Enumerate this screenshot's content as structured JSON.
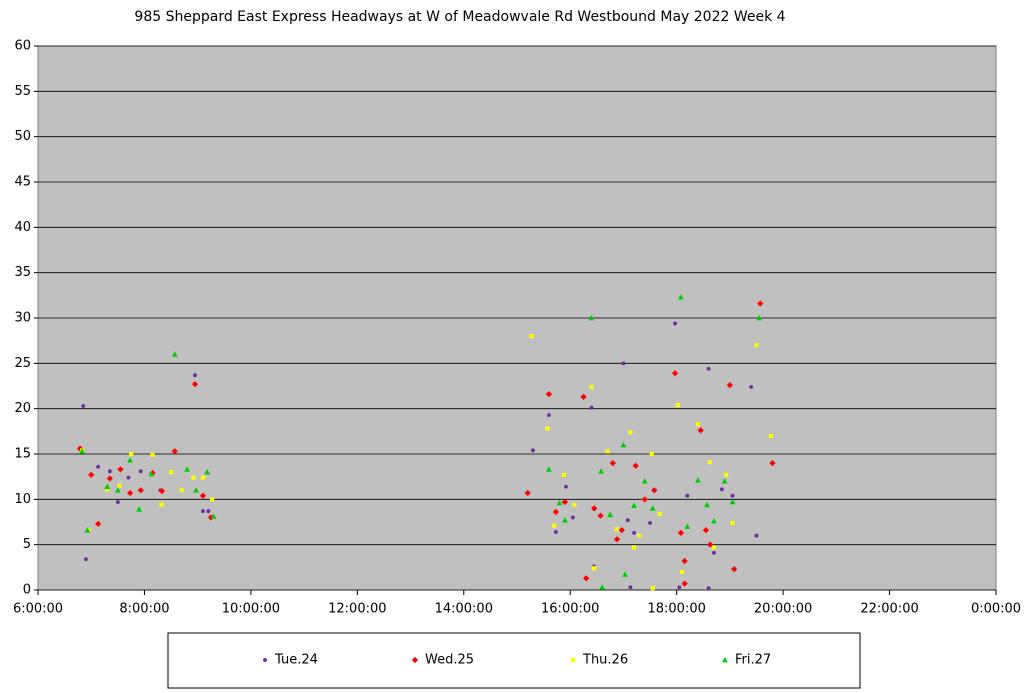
{
  "chart_data": {
    "type": "scatter",
    "title": "985 Sheppard East Express Headways at W of Meadowvale Rd Westbound May 2022  Week 4",
    "xlim": [
      6,
      24
    ],
    "xticks": [
      {
        "value": 6,
        "label": "6:00:00"
      },
      {
        "value": 8,
        "label": "8:00:00"
      },
      {
        "value": 10,
        "label": "10:00:00"
      },
      {
        "value": 12,
        "label": "12:00:00"
      },
      {
        "value": 14,
        "label": "14:00:00"
      },
      {
        "value": 16,
        "label": "16:00:00"
      },
      {
        "value": 18,
        "label": "18:00:00"
      },
      {
        "value": 20,
        "label": "20:00:00"
      },
      {
        "value": 22,
        "label": "22:00:00"
      },
      {
        "value": 24,
        "label": "0:00:00"
      }
    ],
    "ylim": [
      0,
      60
    ],
    "yticks": [
      0,
      5,
      10,
      15,
      20,
      25,
      30,
      35,
      40,
      45,
      50,
      55,
      60
    ],
    "grid": true,
    "legend": "bottom",
    "series": [
      {
        "name": "Tue.24",
        "color": "#7030a0",
        "marker": "circle",
        "x": [
          6.85,
          6.9,
          7.13,
          7.35,
          7.5,
          7.7,
          7.93,
          8.3,
          8.95,
          9.1,
          9.2,
          15.3,
          15.6,
          15.73,
          15.92,
          16.05,
          16.4,
          16.45,
          17.0,
          17.08,
          17.13,
          17.2,
          17.5,
          17.97,
          18.05,
          18.2,
          18.6,
          18.6,
          18.7,
          18.85,
          19.05,
          19.4,
          19.5
        ],
        "values": [
          20.3,
          3.4,
          13.6,
          13.1,
          9.7,
          12.4,
          13.1,
          11,
          23.7,
          8.7,
          8.7,
          15.4,
          19.3,
          6.4,
          11.4,
          8,
          20.1,
          2.6,
          25,
          7.7,
          0.3,
          6.3,
          7.4,
          29.4,
          0.3,
          10.4,
          24.4,
          0.2,
          4.1,
          11.1,
          10.4,
          22.4,
          6
        ]
      },
      {
        "name": "Wed.25",
        "color": "#ff0000",
        "marker": "diamond",
        "x": [
          6.79,
          7.0,
          7.13,
          7.35,
          7.55,
          7.73,
          7.93,
          8.15,
          8.33,
          8.57,
          8.95,
          9.1,
          9.25,
          15.2,
          15.6,
          15.73,
          15.9,
          16.25,
          16.3,
          16.45,
          16.57,
          16.8,
          16.88,
          16.97,
          17.23,
          17.4,
          17.58,
          17.97,
          18.08,
          18.15,
          18.15,
          18.45,
          18.55,
          18.63,
          19.0,
          19.08,
          19.57,
          19.8
        ],
        "values": [
          15.6,
          12.7,
          7.3,
          12.3,
          13.3,
          10.7,
          11,
          12.9,
          10.9,
          15.3,
          22.7,
          10.4,
          8,
          10.7,
          21.6,
          8.6,
          9.7,
          21.3,
          1.3,
          9,
          8.2,
          14,
          5.6,
          6.6,
          13.7,
          10,
          11,
          23.9,
          6.3,
          3.2,
          0.7,
          17.6,
          6.6,
          5,
          22.6,
          2.3,
          31.6,
          14
        ]
      },
      {
        "name": "Thu.26",
        "color": "#ffff00",
        "marker": "square",
        "x": [
          6.83,
          6.95,
          7.3,
          7.53,
          7.75,
          8.15,
          8.32,
          8.5,
          8.7,
          8.92,
          9.1,
          9.27,
          15.27,
          15.57,
          15.7,
          15.88,
          16.08,
          16.4,
          16.45,
          16.7,
          16.87,
          17.13,
          17.2,
          17.3,
          17.53,
          17.55,
          17.68,
          18.02,
          18.1,
          18.4,
          18.62,
          18.7,
          18.93,
          19.05,
          19.5,
          19.77
        ],
        "values": [
          15.4,
          6.6,
          11.1,
          11.5,
          15,
          14.9,
          9.4,
          13,
          11,
          12.4,
          12.4,
          10,
          28,
          17.8,
          7.1,
          12.7,
          9.4,
          22.4,
          2.4,
          15.3,
          6.7,
          17.4,
          4.7,
          6,
          15,
          0.2,
          8.4,
          20.4,
          2,
          18.3,
          14.1,
          4.7,
          12.7,
          7.4,
          27,
          17
        ]
      },
      {
        "name": "Fri.27",
        "color": "#00cc00",
        "marker": "triangle",
        "x": [
          6.83,
          6.93,
          7.3,
          7.5,
          7.73,
          7.9,
          8.13,
          8.57,
          8.8,
          8.97,
          9.18,
          9.3,
          15.6,
          15.8,
          15.9,
          16.4,
          16.58,
          16.6,
          16.75,
          17.0,
          17.03,
          17.2,
          17.4,
          17.55,
          18.08,
          18.2,
          18.4,
          18.57,
          18.7,
          18.9,
          19.05,
          19.55
        ],
        "values": [
          15.3,
          6.6,
          11.4,
          11,
          14.3,
          8.9,
          12.8,
          26,
          13.3,
          11,
          13,
          8.1,
          13.3,
          9.6,
          7.7,
          30,
          13.1,
          0.3,
          8.3,
          16,
          1.7,
          9.3,
          12,
          9,
          32.3,
          7,
          12.1,
          9.4,
          7.6,
          12,
          9.7,
          30
        ]
      }
    ]
  }
}
